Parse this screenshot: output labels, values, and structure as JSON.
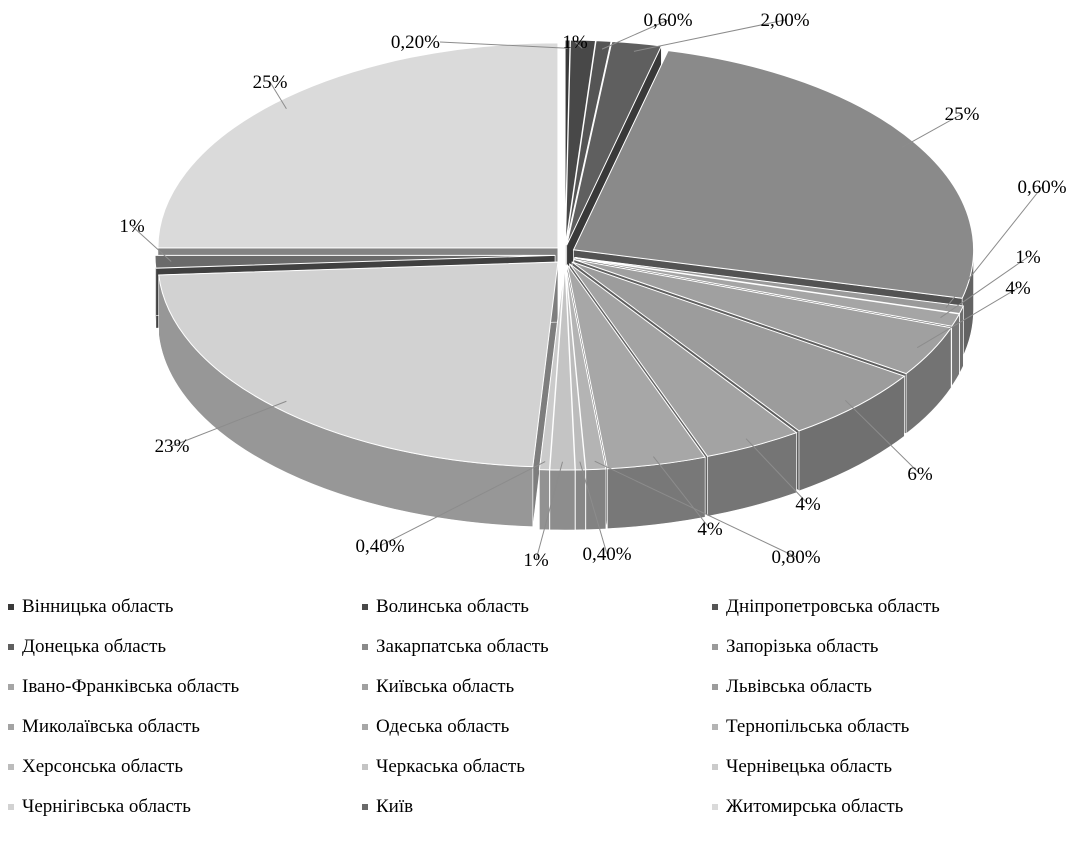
{
  "chart_data": {
    "type": "pie",
    "style": "exploded 3d pie",
    "legend_position": "bottom",
    "slices": [
      {
        "label": "Вінницька область",
        "value": 0.2,
        "data_label": "0,20%",
        "color": "#3a3a3a"
      },
      {
        "label": "Волинська область",
        "value": 1,
        "data_label": "1%",
        "color": "#484848"
      },
      {
        "label": "Дніпропетровська область",
        "value": 0.6,
        "data_label": "0,60%",
        "color": "#555555"
      },
      {
        "label": "Донецька область",
        "value": 2.0,
        "data_label": "2,00%",
        "color": "#5f5f5f"
      },
      {
        "label": "Закарпатська область",
        "value": 25,
        "data_label": "25%",
        "color": "#8a8a8a"
      },
      {
        "label": "Запорізька область",
        "value": 0.6,
        "data_label": "0,60%",
        "color": "#9a9a9a"
      },
      {
        "label": "Івано-Франківська область",
        "value": 1,
        "data_label": "1%",
        "color": "#a5a5a5"
      },
      {
        "label": "Київська область",
        "value": 4,
        "data_label": "4%",
        "color": "#a0a0a0"
      },
      {
        "label": "Львівська область",
        "value": 6,
        "data_label": "6%",
        "color": "#9c9c9c"
      },
      {
        "label": "Миколаївська область",
        "value": 4,
        "data_label": "4%",
        "color": "#a3a3a3"
      },
      {
        "label": "Одеська область",
        "value": 4,
        "data_label": "4%",
        "color": "#a7a7a7"
      },
      {
        "label": "Тернопільська область",
        "value": 0.8,
        "data_label": "0,80%",
        "color": "#b4b4b4"
      },
      {
        "label": "Херсонська область",
        "value": 0.4,
        "data_label": "0,40%",
        "color": "#bcbcbc"
      },
      {
        "label": "Черкаська область",
        "value": 1,
        "data_label": "1%",
        "color": "#c4c4c4"
      },
      {
        "label": "Чернівецька область",
        "value": 0.4,
        "data_label": "0,40%",
        "color": "#cbcbcb"
      },
      {
        "label": "Чернігівська область",
        "value": 23,
        "data_label": "23%",
        "color": "#d2d2d2"
      },
      {
        "label": "Київ",
        "value": 1,
        "data_label": "1%",
        "color": "#6a6a6a"
      },
      {
        "label": "Житомирська область",
        "value": 25,
        "data_label": "25%",
        "color": "#dadada"
      }
    ]
  }
}
